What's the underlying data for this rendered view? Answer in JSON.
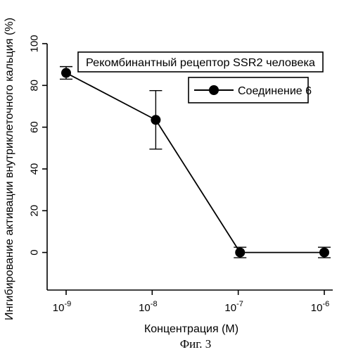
{
  "chart_data": {
    "type": "line",
    "title": "Рекомбинантный рецептор SSR2 человека",
    "xlabel": "Концентрация (М)",
    "ylabel": "Ингибирование активации внутриклеточного кальция (%)",
    "x_scale": "log",
    "x_ticks": [
      {
        "base": "10",
        "exp": "-9"
      },
      {
        "base": "10",
        "exp": "-8"
      },
      {
        "base": "10",
        "exp": "-7"
      },
      {
        "base": "10",
        "exp": "-6"
      }
    ],
    "y_ticks": [
      "0",
      "20",
      "40",
      "60",
      "80",
      "100"
    ],
    "ylim": [
      -18,
      100
    ],
    "xlim": [
      1e-09,
      1e-06
    ],
    "grid": false,
    "legend_position": "top-right",
    "series": [
      {
        "name": "Соединение 6",
        "color": "#000000",
        "marker": "circle",
        "points": [
          {
            "x": 1e-09,
            "y": 86,
            "err_low": 83,
            "err_high": 89
          },
          {
            "x": 1.1e-08,
            "y": 63.5,
            "err_low": 49.5,
            "err_high": 77.5
          },
          {
            "x": 1.05e-07,
            "y": 0,
            "err_low": -2.5,
            "err_high": 2.5
          },
          {
            "x": 1e-06,
            "y": 0,
            "err_low": -2.5,
            "err_high": 2.5
          }
        ]
      }
    ]
  },
  "caption": "Фиг. 3"
}
